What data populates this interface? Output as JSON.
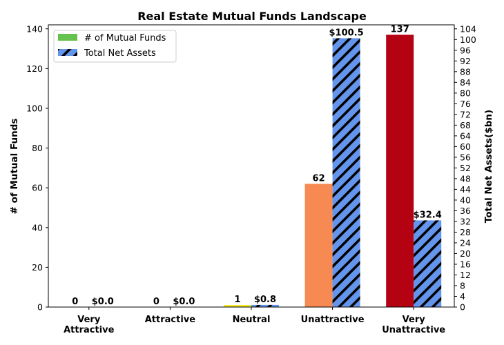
{
  "chart_data": {
    "type": "bar",
    "title": "Real Estate Mutual Funds Landscape",
    "categories": [
      [
        "Very",
        "Attractive"
      ],
      [
        "Attractive"
      ],
      [
        "Neutral"
      ],
      [
        "Unattractive"
      ],
      [
        "Very",
        "Unattractive"
      ]
    ],
    "ylabel_left": "# of Mutual Funds",
    "ylabel_right": "Total Net Assets($bn)",
    "ylim_left": [
      0,
      142
    ],
    "ylim_right": [
      0,
      105.5
    ],
    "yticks_left": [
      0,
      20,
      40,
      60,
      80,
      100,
      120,
      140
    ],
    "yticks_right": [
      0,
      4,
      8,
      12,
      16,
      20,
      24,
      28,
      32,
      36,
      40,
      44,
      48,
      52,
      56,
      60,
      64,
      68,
      72,
      76,
      80,
      84,
      88,
      92,
      96,
      100,
      104
    ],
    "legend_position": "top-left",
    "series": [
      {
        "name": "# of Mutual Funds",
        "axis": "left",
        "values": [
          0,
          0,
          1,
          62,
          137
        ],
        "labels": [
          "0",
          "0",
          "1",
          "62",
          "137"
        ],
        "colors": [
          "#66c24f",
          "#66c24f",
          "#f2ea1a",
          "#f78a52",
          "#b50212"
        ],
        "legend_color": "#66c24f"
      },
      {
        "name": "Total Net Assets",
        "axis": "right",
        "values": [
          0.0,
          0.0,
          0.8,
          100.5,
          32.4
        ],
        "labels": [
          "$0.0",
          "$0.0",
          "$0.8",
          "$100.5",
          "$32.4"
        ],
        "color": "#6495ed",
        "hatch": true
      }
    ]
  }
}
